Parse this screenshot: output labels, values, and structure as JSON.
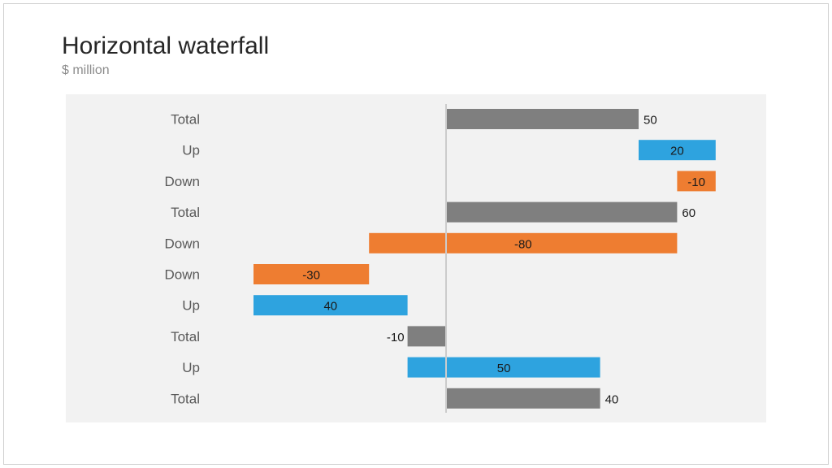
{
  "slide": {
    "title": "Horizontal waterfall",
    "subtitle": "$ million"
  },
  "chart_data": {
    "type": "bar",
    "orientation": "horizontal",
    "subtype": "waterfall",
    "title": "Horizontal waterfall",
    "subtitle": "$ million",
    "xlim": [
      -50,
      70
    ],
    "grid": false,
    "legend": "none",
    "bars": [
      {
        "category": "Total",
        "kind": "total",
        "start": 0,
        "end": 50,
        "label": "50"
      },
      {
        "category": "Up",
        "kind": "up",
        "start": 50,
        "end": 70,
        "label": "20"
      },
      {
        "category": "Down",
        "kind": "down",
        "start": 70,
        "end": 60,
        "label": "-10"
      },
      {
        "category": "Total",
        "kind": "total",
        "start": 0,
        "end": 60,
        "label": "60"
      },
      {
        "category": "Down",
        "kind": "down",
        "start": 60,
        "end": -20,
        "label": "-80"
      },
      {
        "category": "Down",
        "kind": "down",
        "start": -20,
        "end": -50,
        "label": "-30"
      },
      {
        "category": "Up",
        "kind": "up",
        "start": -50,
        "end": -10,
        "label": "40"
      },
      {
        "category": "Total",
        "kind": "total",
        "start": 0,
        "end": -10,
        "label": "-10"
      },
      {
        "category": "Up",
        "kind": "up",
        "start": -10,
        "end": 40,
        "label": "50"
      },
      {
        "category": "Total",
        "kind": "total",
        "start": 0,
        "end": 40,
        "label": "40"
      }
    ],
    "colors": {
      "total": "#7f7f7f",
      "up": "#2ea3df",
      "down": "#ee7d31",
      "plot_background": "#f2f2f2",
      "zero_line": "#cccccc"
    }
  }
}
